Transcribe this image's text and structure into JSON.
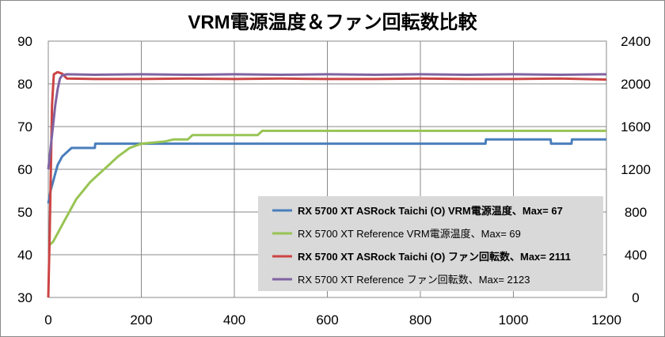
{
  "chart_data": {
    "type": "line",
    "title": "VRM電源温度＆ファン回転数比較",
    "xlabel": "",
    "ylabel": "",
    "xlim": [
      0,
      1200
    ],
    "ylim": [
      30,
      90
    ],
    "y2lim": [
      0,
      2400
    ],
    "x_ticks": [
      "0",
      "200",
      "400",
      "600",
      "800",
      "1000",
      "1200"
    ],
    "y_ticks": [
      "30",
      "40",
      "50",
      "60",
      "70",
      "80",
      "90"
    ],
    "y2_ticks": [
      "0",
      "400",
      "800",
      "1200",
      "1600",
      "2000",
      "2400"
    ],
    "grid": true,
    "legend_position": "bottom-right",
    "series": [
      {
        "name": "RX 5700 XT ASRock Taichi (O) VRM電源温度、Max= 67",
        "axis": "left",
        "color": "#4a7ebb",
        "bold": true,
        "points": [
          [
            0,
            52
          ],
          [
            5,
            55
          ],
          [
            10,
            57
          ],
          [
            15,
            59
          ],
          [
            20,
            61
          ],
          [
            25,
            62
          ],
          [
            30,
            63
          ],
          [
            40,
            64
          ],
          [
            50,
            65
          ],
          [
            100,
            65
          ],
          [
            101,
            66
          ],
          [
            940,
            66
          ],
          [
            941,
            67
          ],
          [
            1080,
            67
          ],
          [
            1081,
            66
          ],
          [
            1125,
            66
          ],
          [
            1126,
            67
          ],
          [
            1200,
            67
          ]
        ]
      },
      {
        "name": "RX 5700 XT Reference VRM電源温度、Max= 69",
        "axis": "left",
        "color": "#98c454",
        "bold": false,
        "points": [
          [
            0,
            42
          ],
          [
            10,
            43
          ],
          [
            20,
            45
          ],
          [
            30,
            47
          ],
          [
            40,
            49
          ],
          [
            50,
            51
          ],
          [
            60,
            53
          ],
          [
            75,
            55
          ],
          [
            90,
            57
          ],
          [
            110,
            59
          ],
          [
            130,
            61
          ],
          [
            150,
            63
          ],
          [
            175,
            65
          ],
          [
            200,
            66
          ],
          [
            250,
            66.5
          ],
          [
            270,
            67
          ],
          [
            300,
            67
          ],
          [
            310,
            68
          ],
          [
            450,
            68
          ],
          [
            460,
            69
          ],
          [
            1200,
            69
          ]
        ]
      },
      {
        "name": "RX 5700 XT ASRock Taichi (O) ファン回転数、Max= 2111",
        "axis": "right",
        "color": "#cc4444",
        "bold": true,
        "points": [
          [
            0,
            0
          ],
          [
            3,
            600
          ],
          [
            8,
            1800
          ],
          [
            12,
            2090
          ],
          [
            20,
            2110
          ],
          [
            30,
            2095
          ],
          [
            40,
            2050
          ],
          [
            100,
            2045
          ],
          [
            200,
            2045
          ],
          [
            300,
            2050
          ],
          [
            400,
            2045
          ],
          [
            500,
            2050
          ],
          [
            600,
            2045
          ],
          [
            700,
            2045
          ],
          [
            800,
            2050
          ],
          [
            900,
            2045
          ],
          [
            1000,
            2045
          ],
          [
            1100,
            2050
          ],
          [
            1200,
            2040
          ]
        ]
      },
      {
        "name": "RX 5700 XT Reference ファン回転数、Max= 2123",
        "axis": "right",
        "color": "#8064a2",
        "bold": false,
        "points": [
          [
            0,
            1200
          ],
          [
            5,
            1400
          ],
          [
            10,
            1600
          ],
          [
            15,
            1800
          ],
          [
            20,
            1950
          ],
          [
            25,
            2050
          ],
          [
            30,
            2080
          ],
          [
            40,
            2090
          ],
          [
            100,
            2085
          ],
          [
            200,
            2090
          ],
          [
            300,
            2085
          ],
          [
            400,
            2090
          ],
          [
            500,
            2085
          ],
          [
            600,
            2090
          ],
          [
            700,
            2085
          ],
          [
            800,
            2090
          ],
          [
            900,
            2085
          ],
          [
            1000,
            2090
          ],
          [
            1100,
            2085
          ],
          [
            1200,
            2090
          ]
        ]
      }
    ]
  }
}
